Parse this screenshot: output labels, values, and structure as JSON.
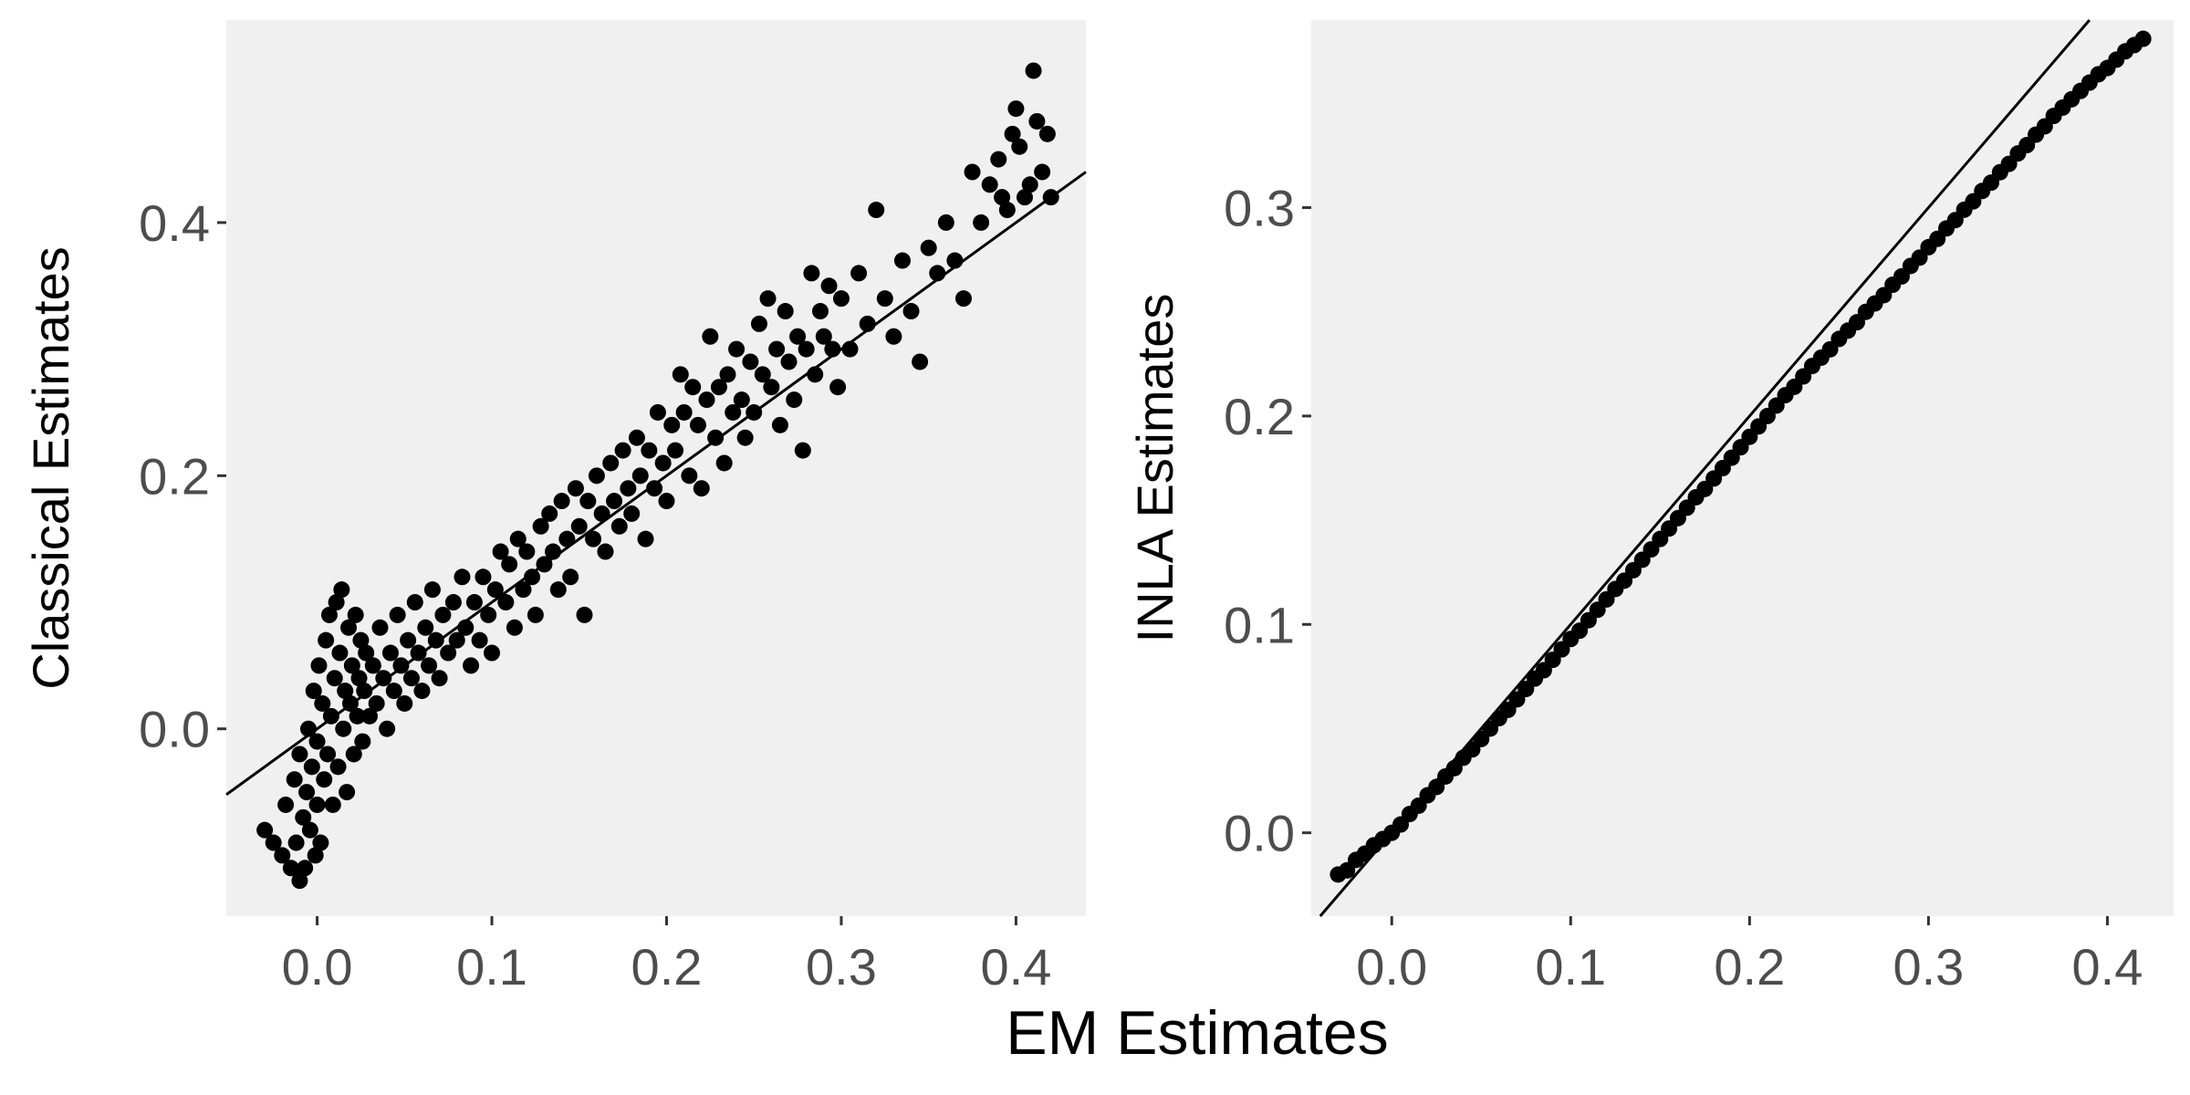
{
  "figure": {
    "xlabel": "EM Estimates"
  },
  "chart_data": [
    {
      "type": "scatter",
      "title": "",
      "xlabel": "EM Estimates",
      "ylabel": "Classical Estimates",
      "xlim": [
        -0.052,
        0.44
      ],
      "ylim": [
        -0.148,
        0.56
      ],
      "xticks": [
        0.0,
        0.1,
        0.2,
        0.3,
        0.4
      ],
      "xtick_labels": [
        "0.0",
        "0.1",
        "0.2",
        "0.3",
        "0.4"
      ],
      "yticks": [
        0.0,
        0.2,
        0.4
      ],
      "ytick_labels": [
        "0.0",
        "0.2",
        "0.4"
      ],
      "grid": false,
      "background": "#f0f0f0",
      "point_color": "#000000",
      "reference_line": {
        "intercept": 0,
        "slope": 1
      },
      "points": [
        [
          -0.03,
          -0.08
        ],
        [
          -0.025,
          -0.09
        ],
        [
          -0.02,
          -0.1
        ],
        [
          -0.018,
          -0.06
        ],
        [
          -0.015,
          -0.11
        ],
        [
          -0.013,
          -0.04
        ],
        [
          -0.012,
          -0.09
        ],
        [
          -0.01,
          -0.12
        ],
        [
          -0.01,
          -0.02
        ],
        [
          -0.008,
          -0.07
        ],
        [
          -0.007,
          -0.11
        ],
        [
          -0.006,
          -0.05
        ],
        [
          -0.005,
          0.0
        ],
        [
          -0.004,
          -0.08
        ],
        [
          -0.003,
          -0.03
        ],
        [
          -0.002,
          0.03
        ],
        [
          -0.001,
          -0.1
        ],
        [
          0.0,
          -0.06
        ],
        [
          0.0,
          -0.01
        ],
        [
          0.001,
          0.05
        ],
        [
          0.002,
          -0.09
        ],
        [
          0.003,
          0.02
        ],
        [
          0.004,
          -0.04
        ],
        [
          0.005,
          0.07
        ],
        [
          0.006,
          -0.02
        ],
        [
          0.007,
          0.09
        ],
        [
          0.008,
          0.01
        ],
        [
          0.009,
          -0.06
        ],
        [
          0.01,
          0.04
        ],
        [
          0.011,
          0.1
        ],
        [
          0.012,
          -0.03
        ],
        [
          0.013,
          0.06
        ],
        [
          0.014,
          0.11
        ],
        [
          0.015,
          0.0
        ],
        [
          0.016,
          0.03
        ],
        [
          0.017,
          -0.05
        ],
        [
          0.018,
          0.08
        ],
        [
          0.019,
          0.02
        ],
        [
          0.02,
          0.05
        ],
        [
          0.021,
          -0.02
        ],
        [
          0.022,
          0.09
        ],
        [
          0.023,
          0.01
        ],
        [
          0.024,
          0.04
        ],
        [
          0.025,
          0.07
        ],
        [
          0.026,
          -0.01
        ],
        [
          0.027,
          0.03
        ],
        [
          0.028,
          0.06
        ],
        [
          0.03,
          0.01
        ],
        [
          0.032,
          0.05
        ],
        [
          0.034,
          0.02
        ],
        [
          0.036,
          0.08
        ],
        [
          0.038,
          0.04
        ],
        [
          0.04,
          0.0
        ],
        [
          0.042,
          0.06
        ],
        [
          0.044,
          0.03
        ],
        [
          0.046,
          0.09
        ],
        [
          0.048,
          0.05
        ],
        [
          0.05,
          0.02
        ],
        [
          0.052,
          0.07
        ],
        [
          0.054,
          0.04
        ],
        [
          0.056,
          0.1
        ],
        [
          0.058,
          0.06
        ],
        [
          0.06,
          0.03
        ],
        [
          0.062,
          0.08
        ],
        [
          0.064,
          0.05
        ],
        [
          0.066,
          0.11
        ],
        [
          0.068,
          0.07
        ],
        [
          0.07,
          0.04
        ],
        [
          0.072,
          0.09
        ],
        [
          0.075,
          0.06
        ],
        [
          0.078,
          0.1
        ],
        [
          0.08,
          0.07
        ],
        [
          0.083,
          0.12
        ],
        [
          0.085,
          0.08
        ],
        [
          0.088,
          0.05
        ],
        [
          0.09,
          0.1
        ],
        [
          0.093,
          0.07
        ],
        [
          0.095,
          0.12
        ],
        [
          0.098,
          0.09
        ],
        [
          0.1,
          0.06
        ],
        [
          0.102,
          0.11
        ],
        [
          0.105,
          0.14
        ],
        [
          0.108,
          0.1
        ],
        [
          0.11,
          0.13
        ],
        [
          0.113,
          0.08
        ],
        [
          0.115,
          0.15
        ],
        [
          0.118,
          0.11
        ],
        [
          0.12,
          0.14
        ],
        [
          0.123,
          0.12
        ],
        [
          0.125,
          0.09
        ],
        [
          0.128,
          0.16
        ],
        [
          0.13,
          0.13
        ],
        [
          0.133,
          0.17
        ],
        [
          0.135,
          0.14
        ],
        [
          0.138,
          0.11
        ],
        [
          0.14,
          0.18
        ],
        [
          0.143,
          0.15
        ],
        [
          0.145,
          0.12
        ],
        [
          0.148,
          0.19
        ],
        [
          0.15,
          0.16
        ],
        [
          0.153,
          0.09
        ],
        [
          0.155,
          0.18
        ],
        [
          0.158,
          0.15
        ],
        [
          0.16,
          0.2
        ],
        [
          0.163,
          0.17
        ],
        [
          0.165,
          0.14
        ],
        [
          0.168,
          0.21
        ],
        [
          0.17,
          0.18
        ],
        [
          0.173,
          0.16
        ],
        [
          0.175,
          0.22
        ],
        [
          0.178,
          0.19
        ],
        [
          0.18,
          0.17
        ],
        [
          0.183,
          0.23
        ],
        [
          0.185,
          0.2
        ],
        [
          0.188,
          0.15
        ],
        [
          0.19,
          0.22
        ],
        [
          0.193,
          0.19
        ],
        [
          0.195,
          0.25
        ],
        [
          0.198,
          0.21
        ],
        [
          0.2,
          0.18
        ],
        [
          0.203,
          0.24
        ],
        [
          0.205,
          0.22
        ],
        [
          0.208,
          0.28
        ],
        [
          0.21,
          0.25
        ],
        [
          0.213,
          0.2
        ],
        [
          0.215,
          0.27
        ],
        [
          0.218,
          0.24
        ],
        [
          0.22,
          0.19
        ],
        [
          0.223,
          0.26
        ],
        [
          0.225,
          0.31
        ],
        [
          0.228,
          0.23
        ],
        [
          0.23,
          0.27
        ],
        [
          0.233,
          0.21
        ],
        [
          0.235,
          0.28
        ],
        [
          0.238,
          0.25
        ],
        [
          0.24,
          0.3
        ],
        [
          0.243,
          0.26
        ],
        [
          0.245,
          0.23
        ],
        [
          0.248,
          0.29
        ],
        [
          0.25,
          0.25
        ],
        [
          0.253,
          0.32
        ],
        [
          0.255,
          0.28
        ],
        [
          0.258,
          0.34
        ],
        [
          0.26,
          0.27
        ],
        [
          0.263,
          0.3
        ],
        [
          0.265,
          0.24
        ],
        [
          0.268,
          0.33
        ],
        [
          0.27,
          0.29
        ],
        [
          0.273,
          0.26
        ],
        [
          0.275,
          0.31
        ],
        [
          0.278,
          0.22
        ],
        [
          0.28,
          0.3
        ],
        [
          0.283,
          0.36
        ],
        [
          0.285,
          0.28
        ],
        [
          0.288,
          0.33
        ],
        [
          0.29,
          0.31
        ],
        [
          0.293,
          0.35
        ],
        [
          0.295,
          0.3
        ],
        [
          0.298,
          0.27
        ],
        [
          0.3,
          0.34
        ],
        [
          0.305,
          0.3
        ],
        [
          0.31,
          0.36
        ],
        [
          0.315,
          0.32
        ],
        [
          0.32,
          0.41
        ],
        [
          0.325,
          0.34
        ],
        [
          0.33,
          0.31
        ],
        [
          0.335,
          0.37
        ],
        [
          0.34,
          0.33
        ],
        [
          0.345,
          0.29
        ],
        [
          0.35,
          0.38
        ],
        [
          0.355,
          0.36
        ],
        [
          0.36,
          0.4
        ],
        [
          0.365,
          0.37
        ],
        [
          0.37,
          0.34
        ],
        [
          0.375,
          0.44
        ],
        [
          0.38,
          0.4
        ],
        [
          0.385,
          0.43
        ],
        [
          0.39,
          0.45
        ],
        [
          0.395,
          0.41
        ],
        [
          0.4,
          0.49
        ],
        [
          0.402,
          0.46
        ],
        [
          0.405,
          0.42
        ],
        [
          0.41,
          0.52
        ],
        [
          0.412,
          0.48
        ],
        [
          0.415,
          0.44
        ],
        [
          0.418,
          0.47
        ],
        [
          0.42,
          0.42
        ],
        [
          0.408,
          0.43
        ],
        [
          0.398,
          0.47
        ],
        [
          0.392,
          0.42
        ]
      ]
    },
    {
      "type": "scatter",
      "title": "",
      "xlabel": "EM Estimates",
      "ylabel": "INLA Estimates",
      "xlim": [
        -0.045,
        0.437
      ],
      "ylim": [
        -0.04,
        0.39
      ],
      "xticks": [
        0.0,
        0.1,
        0.2,
        0.3,
        0.4
      ],
      "xtick_labels": [
        "0.0",
        "0.1",
        "0.2",
        "0.3",
        "0.4"
      ],
      "yticks": [
        0.0,
        0.1,
        0.2,
        0.3
      ],
      "ytick_labels": [
        "0.0",
        "0.1",
        "0.2",
        "0.3"
      ],
      "grid": false,
      "background": "#f0f0f0",
      "point_color": "#000000",
      "reference_line": {
        "intercept": 0,
        "slope": 1
      },
      "points": [
        [
          -0.03,
          -0.02
        ],
        [
          -0.025,
          -0.018
        ],
        [
          -0.02,
          -0.013
        ],
        [
          -0.015,
          -0.01
        ],
        [
          -0.01,
          -0.006
        ],
        [
          -0.005,
          -0.003
        ],
        [
          0.0,
          0.0
        ],
        [
          0.005,
          0.004
        ],
        [
          0.01,
          0.009
        ],
        [
          0.015,
          0.013
        ],
        [
          0.02,
          0.018
        ],
        [
          0.025,
          0.022
        ],
        [
          0.03,
          0.027
        ],
        [
          0.035,
          0.031
        ],
        [
          0.04,
          0.036
        ],
        [
          0.045,
          0.04
        ],
        [
          0.05,
          0.045
        ],
        [
          0.055,
          0.05
        ],
        [
          0.06,
          0.055
        ],
        [
          0.065,
          0.059
        ],
        [
          0.07,
          0.064
        ],
        [
          0.075,
          0.069
        ],
        [
          0.08,
          0.074
        ],
        [
          0.085,
          0.078
        ],
        [
          0.09,
          0.083
        ],
        [
          0.095,
          0.088
        ],
        [
          0.1,
          0.093
        ],
        [
          0.105,
          0.097
        ],
        [
          0.11,
          0.102
        ],
        [
          0.115,
          0.107
        ],
        [
          0.12,
          0.112
        ],
        [
          0.125,
          0.117
        ],
        [
          0.13,
          0.121
        ],
        [
          0.135,
          0.126
        ],
        [
          0.14,
          0.131
        ],
        [
          0.145,
          0.136
        ],
        [
          0.15,
          0.141
        ],
        [
          0.155,
          0.146
        ],
        [
          0.16,
          0.151
        ],
        [
          0.165,
          0.156
        ],
        [
          0.17,
          0.161
        ],
        [
          0.175,
          0.165
        ],
        [
          0.18,
          0.17
        ],
        [
          0.185,
          0.175
        ],
        [
          0.19,
          0.18
        ],
        [
          0.195,
          0.185
        ],
        [
          0.2,
          0.19
        ],
        [
          0.205,
          0.195
        ],
        [
          0.21,
          0.2
        ],
        [
          0.215,
          0.205
        ],
        [
          0.22,
          0.21
        ],
        [
          0.225,
          0.214
        ],
        [
          0.23,
          0.219
        ],
        [
          0.235,
          0.224
        ],
        [
          0.24,
          0.228
        ],
        [
          0.245,
          0.232
        ],
        [
          0.25,
          0.237
        ],
        [
          0.255,
          0.241
        ],
        [
          0.26,
          0.245
        ],
        [
          0.265,
          0.25
        ],
        [
          0.27,
          0.254
        ],
        [
          0.275,
          0.258
        ],
        [
          0.28,
          0.263
        ],
        [
          0.285,
          0.267
        ],
        [
          0.29,
          0.272
        ],
        [
          0.295,
          0.276
        ],
        [
          0.3,
          0.281
        ],
        [
          0.305,
          0.285
        ],
        [
          0.31,
          0.29
        ],
        [
          0.315,
          0.294
        ],
        [
          0.32,
          0.299
        ],
        [
          0.325,
          0.303
        ],
        [
          0.33,
          0.308
        ],
        [
          0.335,
          0.312
        ],
        [
          0.34,
          0.317
        ],
        [
          0.345,
          0.321
        ],
        [
          0.35,
          0.326
        ],
        [
          0.355,
          0.33
        ],
        [
          0.36,
          0.335
        ],
        [
          0.365,
          0.339
        ],
        [
          0.37,
          0.344
        ],
        [
          0.375,
          0.348
        ],
        [
          0.38,
          0.352
        ],
        [
          0.385,
          0.356
        ],
        [
          0.39,
          0.36
        ],
        [
          0.395,
          0.364
        ],
        [
          0.4,
          0.367
        ],
        [
          0.405,
          0.371
        ],
        [
          0.41,
          0.375
        ],
        [
          0.415,
          0.378
        ],
        [
          0.42,
          0.381
        ]
      ]
    }
  ]
}
